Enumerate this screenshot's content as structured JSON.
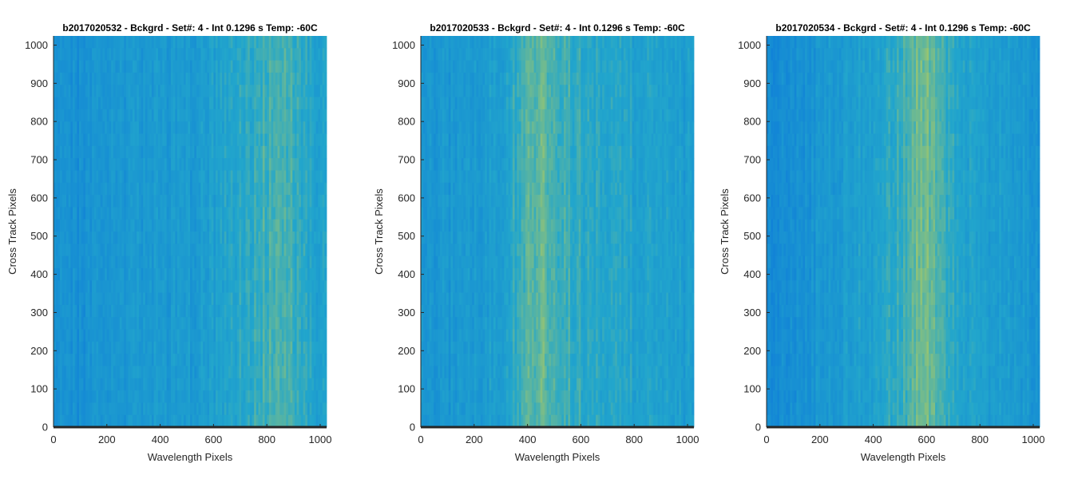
{
  "chart_data": [
    {
      "type": "heatmap",
      "title": "b2017020532 - Bckgrd - Set#: 4 - Int 0.1296 s Temp: -60C",
      "xlabel": "Wavelength Pixels",
      "ylabel": "Cross Track Pixels",
      "xlim": [
        0,
        1024
      ],
      "ylim": [
        0,
        1024
      ],
      "xticks": [
        0,
        200,
        400,
        600,
        800,
        1000
      ],
      "yticks": [
        0,
        100,
        200,
        300,
        400,
        500,
        600,
        700,
        800,
        900,
        1000
      ],
      "intensity_profile": {
        "x": [
          0,
          100,
          200,
          300,
          400,
          500,
          600,
          700,
          800,
          850,
          900,
          1024
        ],
        "level": [
          0.25,
          0.22,
          0.28,
          0.32,
          0.35,
          0.33,
          0.4,
          0.5,
          0.62,
          0.68,
          0.6,
          0.42
        ]
      }
    },
    {
      "type": "heatmap",
      "title": "b2017020533 - Bckgrd - Set#: 4 - Int 0.1296 s Temp: -60C",
      "xlabel": "Wavelength Pixels",
      "ylabel": "Cross Track Pixels",
      "xlim": [
        0,
        1024
      ],
      "ylim": [
        0,
        1024
      ],
      "xticks": [
        0,
        200,
        400,
        600,
        800,
        1000
      ],
      "yticks": [
        0,
        100,
        200,
        300,
        400,
        500,
        600,
        700,
        800,
        900,
        1000
      ],
      "intensity_profile": {
        "x": [
          0,
          100,
          200,
          300,
          400,
          450,
          500,
          600,
          700,
          800,
          900,
          1024
        ],
        "level": [
          0.3,
          0.32,
          0.35,
          0.42,
          0.65,
          0.75,
          0.62,
          0.55,
          0.5,
          0.45,
          0.42,
          0.38
        ]
      }
    },
    {
      "type": "heatmap",
      "title": "b2017020534 - Bckgrd - Set#: 4 - Int 0.1296 s Temp: -60C",
      "xlabel": "Wavelength Pixels",
      "ylabel": "Cross Track Pixels",
      "xlim": [
        0,
        1024
      ],
      "ylim": [
        0,
        1024
      ],
      "xticks": [
        0,
        200,
        400,
        600,
        800,
        1000
      ],
      "yticks": [
        0,
        100,
        200,
        300,
        400,
        500,
        600,
        700,
        800,
        900,
        1000
      ],
      "intensity_profile": {
        "x": [
          0,
          100,
          200,
          300,
          400,
          500,
          550,
          600,
          650,
          700,
          800,
          900,
          1024
        ],
        "level": [
          0.18,
          0.22,
          0.3,
          0.38,
          0.45,
          0.55,
          0.72,
          0.78,
          0.65,
          0.5,
          0.42,
          0.36,
          0.3
        ]
      }
    }
  ],
  "colormap": {
    "low": "#0f7ed8",
    "mid": "#22a6cc",
    "high": "#b6cc5a"
  }
}
